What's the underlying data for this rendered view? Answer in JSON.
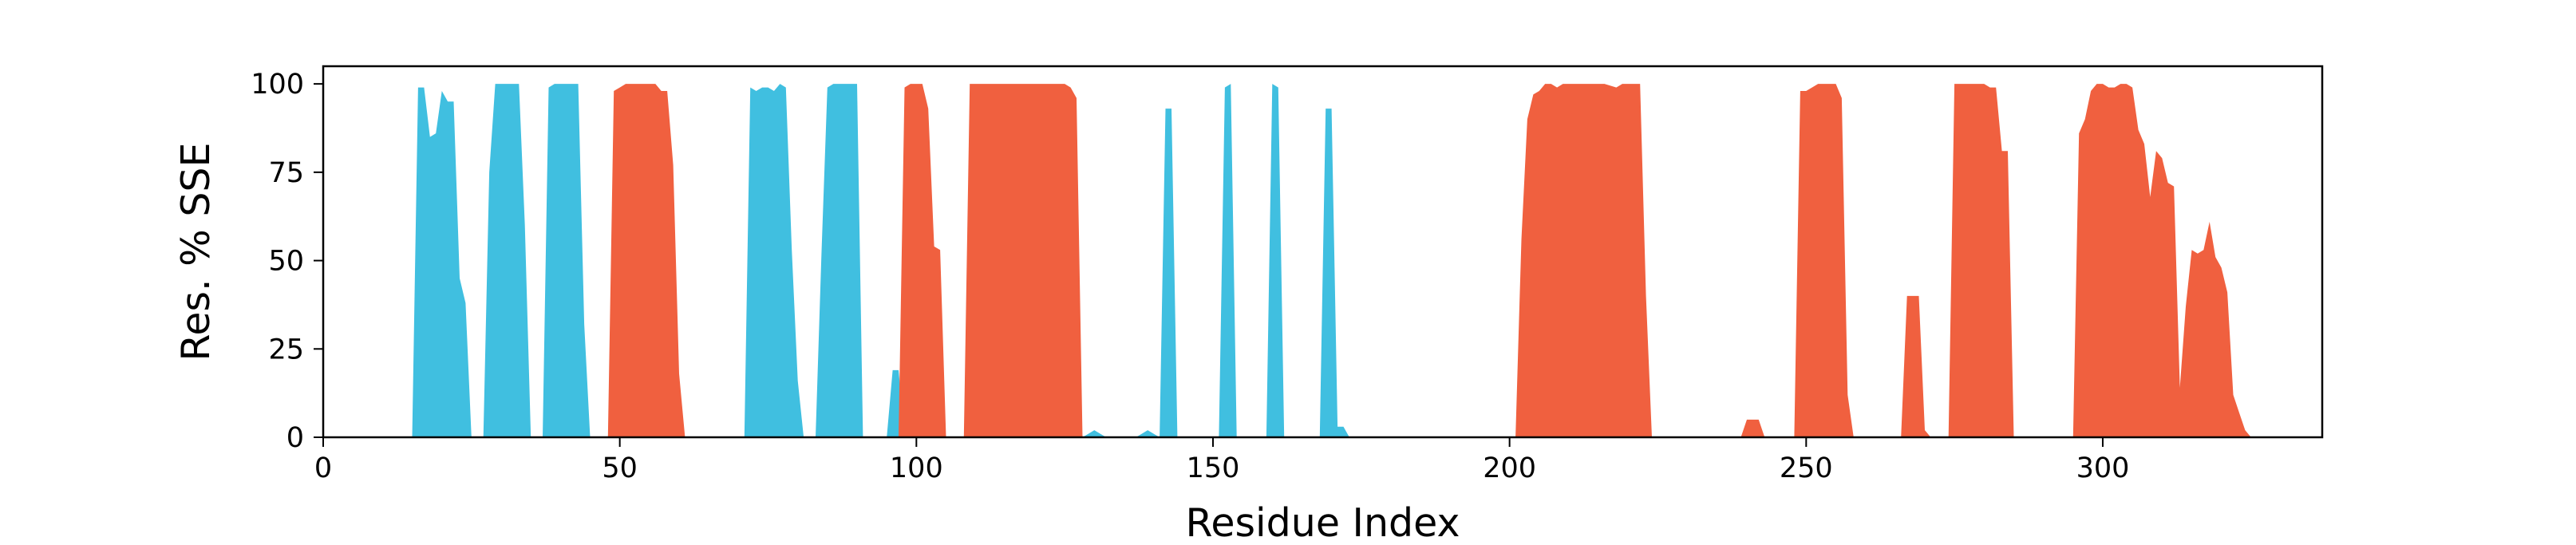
{
  "chart_data": {
    "type": "area",
    "xlabel": "Residue Index",
    "ylabel": "Res. % SSE",
    "xlim": [
      0,
      337
    ],
    "ylim": [
      0,
      105
    ],
    "xticks": [
      0,
      50,
      100,
      150,
      200,
      250,
      300
    ],
    "yticks": [
      0,
      25,
      50,
      75,
      100
    ],
    "grid": false,
    "colors": {
      "strand": "#40bfe0",
      "helix": "#f0603f"
    },
    "series": [
      {
        "color_key": "strand",
        "points": [
          [
            15,
            0
          ],
          [
            16,
            99
          ],
          [
            17,
            99
          ],
          [
            18,
            85
          ],
          [
            19,
            86
          ],
          [
            20,
            98
          ],
          [
            21,
            95
          ],
          [
            22,
            95
          ],
          [
            23,
            45
          ],
          [
            24,
            38
          ],
          [
            25,
            0
          ],
          [
            26,
            0
          ],
          [
            27,
            0
          ],
          [
            28,
            75
          ],
          [
            29,
            100
          ],
          [
            30,
            100
          ],
          [
            31,
            100
          ],
          [
            32,
            100
          ],
          [
            33,
            100
          ],
          [
            34,
            60
          ],
          [
            35,
            0
          ],
          [
            37,
            0
          ],
          [
            38,
            99
          ],
          [
            39,
            100
          ],
          [
            40,
            100
          ],
          [
            41,
            100
          ],
          [
            42,
            100
          ],
          [
            43,
            100
          ],
          [
            44,
            32
          ],
          [
            45,
            0
          ],
          [
            71,
            0
          ],
          [
            72,
            99
          ],
          [
            73,
            98
          ],
          [
            74,
            99
          ],
          [
            75,
            99
          ],
          [
            76,
            98
          ],
          [
            77,
            100
          ],
          [
            78,
            99
          ],
          [
            79,
            53
          ],
          [
            80,
            16
          ],
          [
            81,
            0
          ],
          [
            83,
            0
          ],
          [
            84,
            52
          ],
          [
            85,
            99
          ],
          [
            86,
            100
          ],
          [
            87,
            100
          ],
          [
            88,
            100
          ],
          [
            89,
            100
          ],
          [
            90,
            100
          ],
          [
            91,
            0
          ],
          [
            95,
            0
          ],
          [
            96,
            19
          ],
          [
            97,
            19
          ],
          [
            98,
            0
          ],
          [
            128,
            0
          ],
          [
            129,
            1
          ],
          [
            130,
            2
          ],
          [
            131,
            1
          ],
          [
            132,
            0
          ],
          [
            137,
            0
          ],
          [
            138,
            1
          ],
          [
            139,
            2
          ],
          [
            140,
            1
          ],
          [
            141,
            0
          ],
          [
            142,
            93
          ],
          [
            143,
            93
          ],
          [
            144,
            0
          ],
          [
            151,
            0
          ],
          [
            152,
            99
          ],
          [
            153,
            100
          ],
          [
            154,
            0
          ],
          [
            159,
            0
          ],
          [
            160,
            100
          ],
          [
            161,
            99
          ],
          [
            162,
            0
          ],
          [
            168,
            0
          ],
          [
            169,
            93
          ],
          [
            170,
            93
          ],
          [
            171,
            3
          ],
          [
            172,
            3
          ],
          [
            173,
            0
          ]
        ]
      },
      {
        "color_key": "helix",
        "points": [
          [
            48,
            0
          ],
          [
            49,
            98
          ],
          [
            50,
            99
          ],
          [
            51,
            100
          ],
          [
            52,
            100
          ],
          [
            53,
            100
          ],
          [
            54,
            100
          ],
          [
            55,
            100
          ],
          [
            56,
            100
          ],
          [
            57,
            98
          ],
          [
            58,
            98
          ],
          [
            59,
            77
          ],
          [
            60,
            18
          ],
          [
            61,
            0
          ],
          [
            97,
            0
          ],
          [
            98,
            99
          ],
          [
            99,
            100
          ],
          [
            100,
            100
          ],
          [
            101,
            100
          ],
          [
            102,
            93
          ],
          [
            103,
            54
          ],
          [
            104,
            53
          ],
          [
            105,
            0
          ],
          [
            108,
            0
          ],
          [
            109,
            100
          ],
          [
            110,
            100
          ],
          [
            112,
            100
          ],
          [
            114,
            100
          ],
          [
            116,
            100
          ],
          [
            118,
            100
          ],
          [
            120,
            100
          ],
          [
            122,
            100
          ],
          [
            124,
            100
          ],
          [
            125,
            100
          ],
          [
            126,
            99
          ],
          [
            127,
            96
          ],
          [
            128,
            0
          ],
          [
            201,
            0
          ],
          [
            202,
            56
          ],
          [
            203,
            90
          ],
          [
            204,
            97
          ],
          [
            205,
            98
          ],
          [
            206,
            100
          ],
          [
            207,
            100
          ],
          [
            208,
            99
          ],
          [
            209,
            100
          ],
          [
            210,
            100
          ],
          [
            212,
            100
          ],
          [
            214,
            100
          ],
          [
            216,
            100
          ],
          [
            218,
            99
          ],
          [
            219,
            100
          ],
          [
            220,
            100
          ],
          [
            221,
            100
          ],
          [
            222,
            100
          ],
          [
            223,
            40
          ],
          [
            224,
            0
          ],
          [
            239,
            0
          ],
          [
            240,
            5
          ],
          [
            241,
            5
          ],
          [
            242,
            5
          ],
          [
            243,
            0
          ],
          [
            248,
            0
          ],
          [
            249,
            98
          ],
          [
            250,
            98
          ],
          [
            251,
            99
          ],
          [
            252,
            100
          ],
          [
            253,
            100
          ],
          [
            254,
            100
          ],
          [
            255,
            100
          ],
          [
            256,
            96
          ],
          [
            257,
            12
          ],
          [
            258,
            0
          ],
          [
            266,
            0
          ],
          [
            267,
            40
          ],
          [
            268,
            40
          ],
          [
            269,
            40
          ],
          [
            270,
            2
          ],
          [
            271,
            0
          ],
          [
            274,
            0
          ],
          [
            275,
            100
          ],
          [
            276,
            100
          ],
          [
            277,
            100
          ],
          [
            278,
            100
          ],
          [
            279,
            100
          ],
          [
            280,
            100
          ],
          [
            281,
            99
          ],
          [
            282,
            99
          ],
          [
            283,
            81
          ],
          [
            284,
            81
          ],
          [
            285,
            0
          ],
          [
            295,
            0
          ],
          [
            296,
            86
          ],
          [
            297,
            90
          ],
          [
            298,
            98
          ],
          [
            299,
            100
          ],
          [
            300,
            100
          ],
          [
            301,
            99
          ],
          [
            302,
            99
          ],
          [
            303,
            100
          ],
          [
            304,
            100
          ],
          [
            305,
            99
          ],
          [
            306,
            87
          ],
          [
            307,
            83
          ],
          [
            308,
            68
          ],
          [
            309,
            81
          ],
          [
            310,
            79
          ],
          [
            311,
            72
          ],
          [
            312,
            71
          ],
          [
            313,
            14
          ],
          [
            314,
            37
          ],
          [
            315,
            53
          ],
          [
            316,
            52
          ],
          [
            317,
            53
          ],
          [
            318,
            61
          ],
          [
            319,
            51
          ],
          [
            320,
            48
          ],
          [
            321,
            41
          ],
          [
            322,
            12
          ],
          [
            323,
            7
          ],
          [
            324,
            2
          ],
          [
            325,
            0
          ]
        ]
      }
    ]
  }
}
